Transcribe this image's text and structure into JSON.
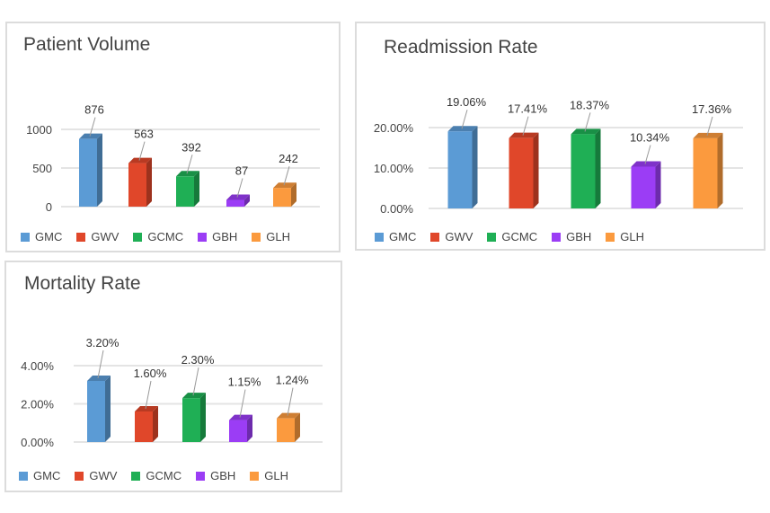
{
  "colors": {
    "GMC": "#5b9bd5",
    "GWV": "#e0472a",
    "GCMC": "#1faf55",
    "GBH": "#9b3df5",
    "GLH": "#fb9a3e"
  },
  "chart_data": [
    {
      "id": "volume",
      "type": "bar",
      "title": "Patient Volume",
      "categories": [
        "GMC",
        "GWV",
        "GCMC",
        "GBH",
        "GLH"
      ],
      "values": [
        876,
        563,
        392,
        87,
        242
      ],
      "value_labels": [
        "876",
        "563",
        "392",
        "87",
        "242"
      ],
      "ylim": [
        0,
        1000
      ],
      "y_ticks": [
        0,
        500,
        1000
      ],
      "y_tick_labels": [
        "0",
        "500",
        "1000"
      ],
      "grid": true,
      "legend": "bottom",
      "legend_labels": [
        "GMC",
        "GWV",
        "GCMC",
        "GBH",
        "GLH"
      ]
    },
    {
      "id": "readmission",
      "type": "bar",
      "title": "Readmission Rate",
      "categories": [
        "GMC",
        "GWV",
        "GCMC",
        "GBH",
        "GLH"
      ],
      "values": [
        19.06,
        17.41,
        18.37,
        10.34,
        17.36
      ],
      "value_labels": [
        "19.06%",
        "17.41%",
        "18.37%",
        "10.34%",
        "17.36%"
      ],
      "ylim": [
        0,
        20
      ],
      "y_ticks": [
        0,
        10,
        20
      ],
      "y_tick_labels": [
        "0.00%",
        "10.00%",
        "20.00%"
      ],
      "grid": true,
      "legend": "bottom",
      "legend_labels": [
        "GMC",
        "GWV",
        "GCMC",
        "GBH",
        "GLH"
      ]
    },
    {
      "id": "mortality",
      "type": "bar",
      "title": "Mortality Rate",
      "categories": [
        "GMC",
        "GWV",
        "GCMC",
        "GBH",
        "GLH"
      ],
      "values": [
        3.2,
        1.6,
        2.3,
        1.15,
        1.24
      ],
      "value_labels": [
        "3.20%",
        "1.60%",
        "2.30%",
        "1.15%",
        "1.24%"
      ],
      "ylim": [
        0,
        4
      ],
      "y_ticks": [
        0,
        2,
        4
      ],
      "y_tick_labels": [
        "0.00%",
        "2.00%",
        "4.00%"
      ],
      "grid": true,
      "legend": "bottom",
      "legend_labels": [
        "GMC",
        "GWV",
        "GCMC",
        "GBH",
        "GLH"
      ]
    }
  ]
}
